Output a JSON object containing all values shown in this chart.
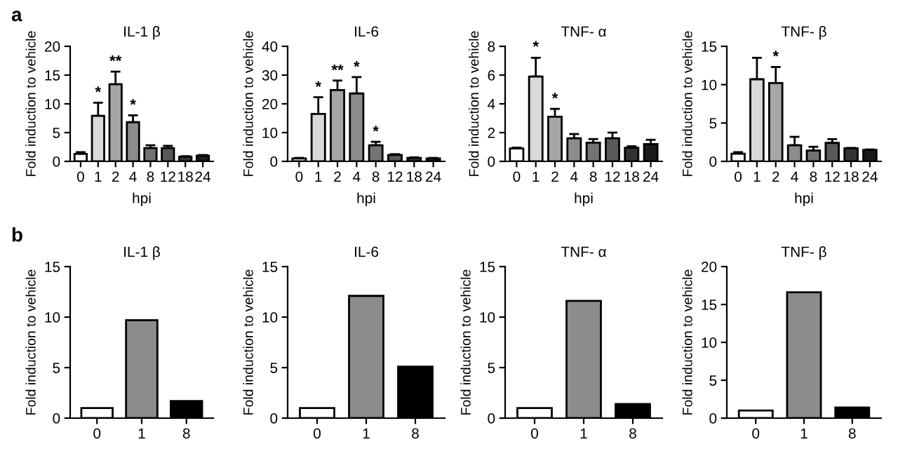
{
  "chart_data": [
    {
      "type": "bar",
      "title": "IL-1 β",
      "xlabel": "hpi",
      "ylabel": "Fold induction to vehicle",
      "categories": [
        "0",
        "1",
        "2",
        "4",
        "8",
        "12",
        "18",
        "24"
      ],
      "values": [
        1.3,
        7.9,
        13.4,
        6.8,
        2.3,
        2.3,
        0.8,
        1.0
      ],
      "colors": [
        "#ffffff",
        "#d9d9d9",
        "#a6a6a6",
        "#8c8c8c",
        "#737373",
        "#595959",
        "#333333",
        "#1a1a1a"
      ],
      "errors": [
        [
          1.3,
          1.6
        ],
        [
          7.9,
          10.2
        ],
        [
          13.4,
          15.6
        ],
        [
          6.8,
          8.0
        ],
        [
          2.3,
          2.8
        ],
        [
          2.3,
          2.7
        ],
        [
          0.8,
          0.9
        ],
        [
          1.0,
          1.1
        ]
      ],
      "ylim": [
        0,
        20
      ],
      "yticks": [
        0,
        5,
        10,
        15,
        20
      ],
      "grid": false,
      "legend": false,
      "annotations": [
        "a",
        {
          "text": "*",
          "x": "1",
          "y": 10.6
        },
        {
          "text": "**",
          "x": "2",
          "y": 16.0
        },
        {
          "text": "*",
          "x": "4",
          "y": 8.4
        }
      ]
    },
    {
      "type": "bar",
      "title": "IL-6",
      "xlabel": "hpi",
      "ylabel": "Fold induction to vehicle",
      "categories": [
        "0",
        "1",
        "2",
        "4",
        "8",
        "12",
        "18",
        "24"
      ],
      "values": [
        1.0,
        16.5,
        24.8,
        23.6,
        5.6,
        2.2,
        1.2,
        1.0
      ],
      "colors": [
        "#ffffff",
        "#d9d9d9",
        "#a6a6a6",
        "#8c8c8c",
        "#737373",
        "#595959",
        "#333333",
        "#1a1a1a"
      ],
      "errors": [
        [
          1.0,
          1.2
        ],
        [
          16.5,
          22.3
        ],
        [
          24.8,
          28.1
        ],
        [
          23.6,
          29.3
        ],
        [
          5.6,
          6.8
        ],
        [
          2.2,
          2.5
        ],
        [
          1.2,
          1.4
        ],
        [
          1.0,
          1.2
        ]
      ],
      "ylim": [
        0,
        40
      ],
      "yticks": [
        0,
        10,
        20,
        30,
        40
      ],
      "grid": false,
      "legend": false,
      "annotations": [
        {
          "text": "*",
          "x": "1",
          "y": 23.0
        },
        {
          "text": "**",
          "x": "2",
          "y": 28.8
        },
        {
          "text": "*",
          "x": "4",
          "y": 30.0
        },
        {
          "text": "*",
          "x": "8",
          "y": 7.5
        }
      ]
    },
    {
      "type": "bar",
      "title": "TNF- α",
      "xlabel": "hpi",
      "ylabel": "Fold induction to vehicle",
      "categories": [
        "0",
        "1",
        "2",
        "4",
        "8",
        "12",
        "18",
        "24"
      ],
      "values": [
        0.9,
        5.9,
        3.1,
        1.6,
        1.3,
        1.6,
        0.95,
        1.2
      ],
      "colors": [
        "#ffffff",
        "#d9d9d9",
        "#a6a6a6",
        "#8c8c8c",
        "#737373",
        "#595959",
        "#333333",
        "#1a1a1a"
      ],
      "errors": [
        [
          0.9,
          0.95
        ],
        [
          5.9,
          7.2
        ],
        [
          3.1,
          3.65
        ],
        [
          1.6,
          1.9
        ],
        [
          1.3,
          1.55
        ],
        [
          1.6,
          2.0
        ],
        [
          0.95,
          1.05
        ],
        [
          1.2,
          1.5
        ]
      ],
      "ylim": [
        0,
        8
      ],
      "yticks": [
        0,
        2,
        4,
        6,
        8
      ],
      "grid": false,
      "legend": false,
      "annotations": [
        {
          "text": "*",
          "x": "1",
          "y": 7.4
        },
        {
          "text": "*",
          "x": "2",
          "y": 3.8
        }
      ]
    },
    {
      "type": "bar",
      "title": "TNF- β",
      "xlabel": "hpi",
      "ylabel": "Fold induction to vehicle",
      "categories": [
        "0",
        "1",
        "2",
        "4",
        "8",
        "12",
        "18",
        "24"
      ],
      "values": [
        1.0,
        10.7,
        10.2,
        2.1,
        1.4,
        2.4,
        1.7,
        1.5
      ],
      "colors": [
        "#ffffff",
        "#d9d9d9",
        "#a6a6a6",
        "#8c8c8c",
        "#737373",
        "#595959",
        "#333333",
        "#1a1a1a"
      ],
      "errors": [
        [
          1.0,
          1.2
        ],
        [
          10.7,
          13.5
        ],
        [
          10.2,
          12.3
        ],
        [
          2.1,
          3.2
        ],
        [
          1.4,
          1.9
        ],
        [
          2.4,
          2.9
        ],
        [
          1.7,
          1.75
        ],
        [
          1.5,
          1.55
        ]
      ],
      "ylim": [
        0,
        15
      ],
      "yticks": [
        0,
        5,
        10,
        15
      ],
      "grid": false,
      "legend": false,
      "annotations": [
        {
          "text": "*",
          "x": "2",
          "y": 12.6
        }
      ]
    },
    {
      "type": "bar",
      "title": "IL-1 β",
      "ylabel": "Fold induction to vehicle",
      "categories": [
        "0",
        "1",
        "8"
      ],
      "values": [
        1.0,
        9.7,
        1.7
      ],
      "colors": [
        "#ffffff",
        "#8c8c8c",
        "#000000"
      ],
      "ylim": [
        0,
        15
      ],
      "yticks": [
        0,
        5,
        10,
        15
      ],
      "grid": false,
      "legend": false,
      "annotations": [
        "b"
      ]
    },
    {
      "type": "bar",
      "title": "IL-6",
      "ylabel": "Fold induction to vehicle",
      "categories": [
        "0",
        "1",
        "8"
      ],
      "values": [
        1.0,
        12.1,
        5.1
      ],
      "colors": [
        "#ffffff",
        "#8c8c8c",
        "#000000"
      ],
      "ylim": [
        0,
        15
      ],
      "yticks": [
        0,
        5,
        10,
        15
      ],
      "grid": false,
      "legend": false
    },
    {
      "type": "bar",
      "title": "TNF- α",
      "ylabel": "Fold induction to vehicle",
      "categories": [
        "0",
        "1",
        "8"
      ],
      "values": [
        1.0,
        11.6,
        1.4
      ],
      "colors": [
        "#ffffff",
        "#8c8c8c",
        "#000000"
      ],
      "ylim": [
        0,
        15
      ],
      "yticks": [
        0,
        5,
        10,
        15
      ],
      "grid": false,
      "legend": false
    },
    {
      "type": "bar",
      "title": "TNF- β",
      "ylabel": "Fold induction to vehicle",
      "categories": [
        "0",
        "1",
        "8"
      ],
      "values": [
        1.0,
        16.6,
        1.4
      ],
      "colors": [
        "#ffffff",
        "#8c8c8c",
        "#000000"
      ],
      "ylim": [
        0,
        20
      ],
      "yticks": [
        0,
        5,
        10,
        15,
        20
      ],
      "grid": false,
      "legend": false
    }
  ]
}
